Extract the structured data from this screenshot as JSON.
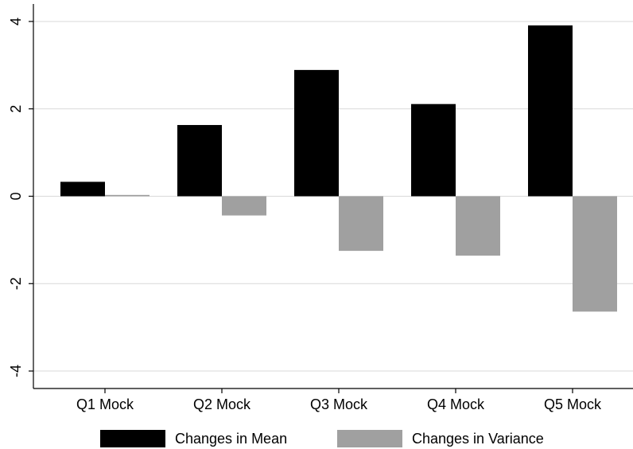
{
  "chart_data": {
    "type": "bar",
    "categories": [
      "Q1 Mock",
      "Q2 Mock",
      "Q3 Mock",
      "Q4 Mock",
      "Q5 Mock"
    ],
    "series": [
      {
        "name": "Changes in Mean",
        "values": [
          0.33,
          1.63,
          2.89,
          2.11,
          3.91
        ],
        "color": "#000000"
      },
      {
        "name": "Changes in Variance",
        "values": [
          0.03,
          -0.44,
          -1.25,
          -1.36,
          -2.64
        ],
        "color": "#a0a0a0"
      }
    ],
    "title": "",
    "xlabel": "",
    "ylabel": "",
    "ylim": [
      -4.4,
      4.4
    ],
    "yticks": [
      -4,
      -2,
      0,
      2,
      4
    ],
    "ytick_labels": [
      "-4",
      "-2",
      "0",
      "2",
      "4"
    ],
    "grid": true,
    "legend_position": "bottom"
  }
}
